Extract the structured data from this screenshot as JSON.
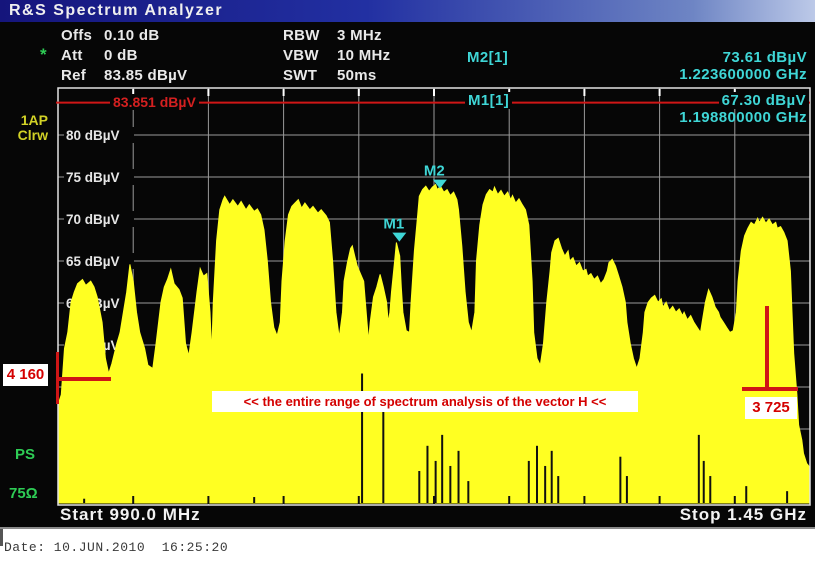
{
  "title_bar": {
    "title": "R&S Spectrum Analyzer"
  },
  "settings": {
    "star": "*",
    "rows": [
      {
        "label": "Offs",
        "value": "0.10 dB"
      },
      {
        "label": "Att",
        "value": "0 dB"
      },
      {
        "label": "Ref",
        "value": "83.85 dBµV"
      }
    ],
    "bw_rows": [
      {
        "label": "RBW",
        "value": "3 MHz"
      },
      {
        "label": "VBW",
        "value": "10 MHz"
      },
      {
        "label": "SWT",
        "value": "50ms"
      }
    ]
  },
  "marker_readouts": {
    "m2": {
      "name": "M2[1]",
      "level": "73.61 dBµV",
      "freq": "1.223600000 GHz"
    },
    "m1": {
      "name": "M1[1]",
      "level": "67.30 dBµV",
      "freq": "1.198800000 GHz"
    }
  },
  "side_labels": {
    "detector": "1AP",
    "mode": "Clrw",
    "ps": "PS",
    "impedance": "75Ω"
  },
  "ref_line_label": "83.851 dBµV",
  "annotations": {
    "range_note": "<< the entire range of spectrum analysis of the vector H <<",
    "left_value": "4 160",
    "right_value": "3 725"
  },
  "freq_bar": {
    "start": "Start 990.0 MHz",
    "stop": "Stop 1.45 GHz"
  },
  "date_line": "Date: 10.JUN.2010  16:25:20",
  "colors": {
    "trace": "#ffff22",
    "marker_cyan": "#3fd6d6",
    "red": "#cf1616",
    "grid": "#9a9a9a",
    "border": "#e2e2e2",
    "green": "#2ecc55",
    "yellow_label": "#d2d226",
    "title_blue": "#2230a2"
  },
  "chart_data": {
    "type": "area",
    "title": "",
    "xlabel": "Frequency",
    "ylabel": "Level",
    "x_unit": "MHz",
    "y_unit": "dBµV",
    "x_range": [
      990,
      1450
    ],
    "x_divisions": 10,
    "y_gridlines": [
      80,
      75,
      70,
      65,
      60,
      55,
      50,
      45,
      40
    ],
    "y_label_values": [
      80,
      75,
      70,
      65,
      60,
      55
    ],
    "ref_line_db": 83.851,
    "trace_color": "#ffff22",
    "legend_position": "none",
    "grid": true,
    "markers": [
      {
        "id": "m1",
        "label": "M1",
        "freq_mhz": 1198.8,
        "level_db": 67.3
      },
      {
        "id": "m2",
        "label": "M2",
        "freq_mhz": 1223.6,
        "level_db": 73.61
      }
    ],
    "envelope": [
      [
        990,
        47.9
      ],
      [
        992,
        49.1
      ],
      [
        994,
        54.6
      ],
      [
        996,
        56.5
      ],
      [
        998,
        60.1
      ],
      [
        1000,
        61.3
      ],
      [
        1002,
        62.3
      ],
      [
        1005,
        62.8
      ],
      [
        1007,
        62.1
      ],
      [
        1010,
        62.6
      ],
      [
        1012,
        61.9
      ],
      [
        1014,
        60.7
      ],
      [
        1017,
        57.7
      ],
      [
        1019,
        53.4
      ],
      [
        1021,
        51.6
      ],
      [
        1023,
        52.8
      ],
      [
        1026,
        55.2
      ],
      [
        1028,
        56.5
      ],
      [
        1030,
        58.9
      ],
      [
        1032,
        61.3
      ],
      [
        1034,
        64.6
      ],
      [
        1036,
        62.6
      ],
      [
        1038,
        58.9
      ],
      [
        1040,
        56.5
      ],
      [
        1043,
        54.6
      ],
      [
        1045,
        52.6
      ],
      [
        1048,
        52.2
      ],
      [
        1050,
        55.2
      ],
      [
        1053,
        60.1
      ],
      [
        1055,
        61.9
      ],
      [
        1057,
        62.8
      ],
      [
        1059,
        64.0
      ],
      [
        1061,
        62.3
      ],
      [
        1064,
        61.6
      ],
      [
        1066,
        60.6
      ],
      [
        1068,
        55.2
      ],
      [
        1070,
        53.7
      ],
      [
        1072,
        56.5
      ],
      [
        1075,
        61.3
      ],
      [
        1077,
        64.1
      ],
      [
        1079,
        63.2
      ],
      [
        1081,
        63.5
      ],
      [
        1083,
        58.9
      ],
      [
        1084,
        54.0
      ],
      [
        1085,
        60.1
      ],
      [
        1087,
        67.4
      ],
      [
        1089,
        71.1
      ],
      [
        1091,
        72.3
      ],
      [
        1092,
        72.7
      ],
      [
        1095,
        71.7
      ],
      [
        1097,
        72.3
      ],
      [
        1100,
        71.5
      ],
      [
        1102,
        72.1
      ],
      [
        1105,
        71.1
      ],
      [
        1107,
        71.7
      ],
      [
        1110,
        70.9
      ],
      [
        1112,
        71.2
      ],
      [
        1114,
        70.5
      ],
      [
        1116,
        68.7
      ],
      [
        1118,
        65.0
      ],
      [
        1120,
        60.1
      ],
      [
        1122,
        57.1
      ],
      [
        1124,
        56.1
      ],
      [
        1126,
        57.7
      ],
      [
        1127,
        62.6
      ],
      [
        1129,
        67.4
      ],
      [
        1131,
        70.5
      ],
      [
        1133,
        71.5
      ],
      [
        1135,
        71.9
      ],
      [
        1137,
        72.3
      ],
      [
        1139,
        71.3
      ],
      [
        1141,
        71.9
      ],
      [
        1144,
        71.1
      ],
      [
        1146,
        71.5
      ],
      [
        1149,
        70.7
      ],
      [
        1151,
        71.1
      ],
      [
        1154,
        70.4
      ],
      [
        1156,
        69.6
      ],
      [
        1158,
        65.0
      ],
      [
        1160,
        58.9
      ],
      [
        1162,
        55.9
      ],
      [
        1164,
        58.9
      ],
      [
        1165,
        62.6
      ],
      [
        1167,
        64.8
      ],
      [
        1169,
        66.5
      ],
      [
        1170,
        66.8
      ],
      [
        1172,
        65.2
      ],
      [
        1173,
        64.4
      ],
      [
        1175,
        63.5
      ],
      [
        1177,
        62.6
      ],
      [
        1179,
        57.7
      ],
      [
        1180,
        55.5
      ],
      [
        1181,
        57.7
      ],
      [
        1183,
        60.7
      ],
      [
        1185,
        61.9
      ],
      [
        1187,
        63.4
      ],
      [
        1189,
        61.9
      ],
      [
        1191,
        60.1
      ],
      [
        1192,
        57.7
      ],
      [
        1193,
        58.9
      ],
      [
        1194,
        61.3
      ],
      [
        1196,
        65.2
      ],
      [
        1197,
        67.2
      ],
      [
        1199,
        65.6
      ],
      [
        1200,
        61.9
      ],
      [
        1201,
        58.9
      ],
      [
        1203,
        56.7
      ],
      [
        1205,
        56.5
      ],
      [
        1206,
        60.1
      ],
      [
        1208,
        66.2
      ],
      [
        1210,
        70.5
      ],
      [
        1211,
        72.7
      ],
      [
        1213,
        73.5
      ],
      [
        1215,
        73.9
      ],
      [
        1217,
        73.3
      ],
      [
        1219,
        73.8
      ],
      [
        1221,
        74.1
      ],
      [
        1222,
        73.5
      ],
      [
        1224,
        73.9
      ],
      [
        1226,
        73.2
      ],
      [
        1228,
        73.5
      ],
      [
        1230,
        72.8
      ],
      [
        1232,
        73.2
      ],
      [
        1234,
        72.3
      ],
      [
        1235,
        71.1
      ],
      [
        1237,
        66.8
      ],
      [
        1239,
        61.3
      ],
      [
        1241,
        57.7
      ],
      [
        1243,
        56.5
      ],
      [
        1245,
        58.9
      ],
      [
        1246,
        65.0
      ],
      [
        1248,
        69.3
      ],
      [
        1250,
        71.7
      ],
      [
        1252,
        72.9
      ],
      [
        1254,
        73.5
      ],
      [
        1256,
        73.2
      ],
      [
        1257,
        73.8
      ],
      [
        1259,
        72.9
      ],
      [
        1261,
        73.4
      ],
      [
        1263,
        72.7
      ],
      [
        1265,
        73.2
      ],
      [
        1267,
        72.3
      ],
      [
        1268,
        72.8
      ],
      [
        1270,
        71.9
      ],
      [
        1272,
        72.4
      ],
      [
        1274,
        71.7
      ],
      [
        1276,
        71.1
      ],
      [
        1278,
        69.3
      ],
      [
        1280,
        62.6
      ],
      [
        1281,
        56.5
      ],
      [
        1283,
        53.4
      ],
      [
        1285,
        52.6
      ],
      [
        1287,
        55.2
      ],
      [
        1289,
        60.1
      ],
      [
        1291,
        63.8
      ],
      [
        1292,
        66.0
      ],
      [
        1294,
        67.4
      ],
      [
        1296,
        67.7
      ],
      [
        1298,
        66.5
      ],
      [
        1300,
        65.6
      ],
      [
        1302,
        66.2
      ],
      [
        1303,
        65.0
      ],
      [
        1305,
        65.4
      ],
      [
        1307,
        64.4
      ],
      [
        1309,
        64.8
      ],
      [
        1311,
        63.8
      ],
      [
        1313,
        64.0
      ],
      [
        1314,
        63.2
      ],
      [
        1316,
        63.5
      ],
      [
        1318,
        62.8
      ],
      [
        1320,
        63.2
      ],
      [
        1322,
        62.3
      ],
      [
        1324,
        62.8
      ],
      [
        1326,
        63.8
      ],
      [
        1327,
        64.8
      ],
      [
        1329,
        65.2
      ],
      [
        1331,
        64.4
      ],
      [
        1333,
        63.2
      ],
      [
        1335,
        61.9
      ],
      [
        1337,
        60.1
      ],
      [
        1338,
        57.7
      ],
      [
        1340,
        55.2
      ],
      [
        1342,
        53.4
      ],
      [
        1344,
        52.2
      ],
      [
        1346,
        53.4
      ],
      [
        1348,
        56.5
      ],
      [
        1349,
        58.9
      ],
      [
        1351,
        60.1
      ],
      [
        1353,
        60.6
      ],
      [
        1355,
        60.9
      ],
      [
        1357,
        60.1
      ],
      [
        1359,
        60.5
      ],
      [
        1360,
        59.5
      ],
      [
        1362,
        60.1
      ],
      [
        1364,
        59.1
      ],
      [
        1366,
        59.6
      ],
      [
        1368,
        58.9
      ],
      [
        1370,
        59.3
      ],
      [
        1372,
        58.5
      ],
      [
        1373,
        58.9
      ],
      [
        1375,
        58.0
      ],
      [
        1377,
        58.5
      ],
      [
        1379,
        57.7
      ],
      [
        1381,
        57.1
      ],
      [
        1383,
        56.5
      ],
      [
        1384,
        57.7
      ],
      [
        1386,
        60.1
      ],
      [
        1388,
        61.6
      ],
      [
        1390,
        60.7
      ],
      [
        1392,
        59.5
      ],
      [
        1394,
        58.9
      ],
      [
        1395,
        58.3
      ],
      [
        1397,
        57.7
      ],
      [
        1399,
        57.1
      ],
      [
        1401,
        56.5
      ],
      [
        1403,
        56.7
      ],
      [
        1405,
        58.9
      ],
      [
        1406,
        62.6
      ],
      [
        1408,
        66.2
      ],
      [
        1410,
        68.0
      ],
      [
        1412,
        68.9
      ],
      [
        1414,
        69.6
      ],
      [
        1416,
        69.3
      ],
      [
        1418,
        70.1
      ],
      [
        1419,
        69.6
      ],
      [
        1421,
        70.2
      ],
      [
        1423,
        69.5
      ],
      [
        1425,
        70.0
      ],
      [
        1427,
        69.3
      ],
      [
        1429,
        69.6
      ],
      [
        1430,
        68.9
      ],
      [
        1432,
        69.1
      ],
      [
        1434,
        68.4
      ],
      [
        1436,
        67.4
      ],
      [
        1438,
        63.8
      ],
      [
        1439,
        58.9
      ],
      [
        1440,
        54.0
      ],
      [
        1442,
        49.1
      ],
      [
        1443,
        45.5
      ],
      [
        1445,
        43.7
      ],
      [
        1446,
        42.1
      ],
      [
        1448,
        40.9
      ],
      [
        1450,
        40.4
      ]
    ],
    "notches": [
      [
        1006,
        36.7
      ],
      [
        1110,
        36.9
      ],
      [
        1176,
        51.6
      ],
      [
        1189,
        48.5
      ],
      [
        1211,
        40.0
      ],
      [
        1216,
        43.0
      ],
      [
        1221,
        41.2
      ],
      [
        1225,
        44.3
      ],
      [
        1230,
        40.6
      ],
      [
        1235,
        42.4
      ],
      [
        1241,
        38.8
      ],
      [
        1278,
        41.2
      ],
      [
        1283,
        43.0
      ],
      [
        1288,
        40.6
      ],
      [
        1292,
        42.4
      ],
      [
        1296,
        39.4
      ],
      [
        1334,
        41.7
      ],
      [
        1338,
        39.4
      ],
      [
        1382,
        44.3
      ],
      [
        1385,
        41.2
      ],
      [
        1389,
        39.4
      ],
      [
        1411,
        38.2
      ],
      [
        1436,
        37.6
      ]
    ]
  }
}
